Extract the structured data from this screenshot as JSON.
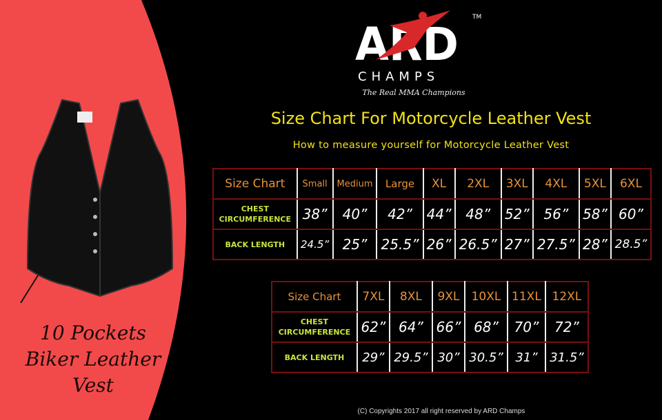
{
  "colors": {
    "panel": "#f24a4a",
    "heading": "#f2e21a",
    "size_label": "#e8923a",
    "row_label": "#c8e63a",
    "border": "#7a0f0f"
  },
  "logo": {
    "text": "ARD",
    "sub": "CHAMPS",
    "tm": "TM",
    "tagline": "The Real MMA Champions"
  },
  "product": {
    "caption_lines": [
      "10 Pockets",
      "Biker Leather",
      "Vest"
    ]
  },
  "title": "Size Chart For Motorcycle Leather Vest",
  "subtitle": "How to measure yourself for Motorcycle Leather Vest",
  "table1": {
    "header": [
      "Size Chart",
      "Small",
      "Medium",
      "Large",
      "XL",
      "2XL",
      "3XL",
      "4XL",
      "5XL",
      "6XL"
    ],
    "chest": {
      "label": [
        "CHEST",
        "CIRCUMFERENCE"
      ],
      "values": [
        "38”",
        "40”",
        "42”",
        "44”",
        "48”",
        "52”",
        "56”",
        "58”",
        "60”"
      ]
    },
    "back": {
      "label": "BACK LENGTH",
      "values": [
        "24.5”",
        "25”",
        "25.5”",
        "26”",
        "26.5”",
        "27”",
        "27.5”",
        "28”",
        "28.5”"
      ]
    }
  },
  "table2": {
    "header": [
      "Size Chart",
      "7XL",
      "8XL",
      "9XL",
      "10XL",
      "11XL",
      "12XL"
    ],
    "chest": {
      "label": [
        "CHEST",
        "CIRCUMFERENCE"
      ],
      "values": [
        "62”",
        "64”",
        "66”",
        "68”",
        "70”",
        "72”"
      ]
    },
    "back": {
      "label": "BACK LENGTH",
      "values": [
        "29”",
        "29.5”",
        "30”",
        "30.5”",
        "31”",
        "31.5”"
      ]
    }
  },
  "copyright": "(C) Copyrights 2017 all right reserved by ARD Champs"
}
